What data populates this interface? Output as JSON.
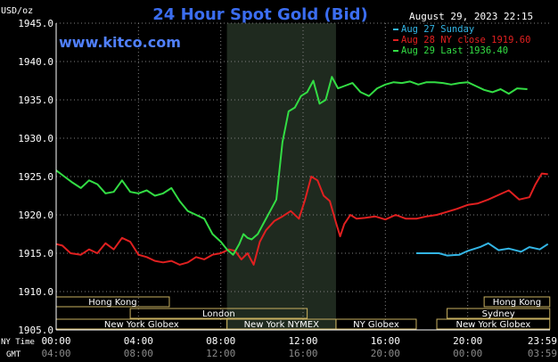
{
  "chart_data": {
    "type": "line",
    "title": "24 Hour Spot Gold (Bid)",
    "ylabel": "USD/oz",
    "website": "www.kitco.com",
    "timestamp": "August 29, 2023 22:15",
    "ylim": [
      1905,
      1945
    ],
    "yticks": [
      "1945.0",
      "1940.0",
      "1935.0",
      "1930.0",
      "1925.0",
      "1920.0",
      "1915.0",
      "1910.0",
      "1905.0"
    ],
    "xlim": [
      0,
      24
    ],
    "nytime_label": "NY Time",
    "gmt_label": "GMT",
    "nytime_ticks": [
      "00:00",
      "04:00",
      "08:00",
      "12:00",
      "16:00",
      "20:00",
      "23:59"
    ],
    "gmt_ticks": [
      "04:00",
      "08:00",
      "12:00",
      "16:00",
      "20:00",
      "00:00",
      "03:59"
    ],
    "shaded_region": [
      8.3,
      13.6
    ],
    "grid": true,
    "legend_position": "top-right",
    "sessions": [
      {
        "label": "Hong Kong",
        "start": 0,
        "end": 5.5,
        "row": 0
      },
      {
        "label": "Hong Kong",
        "start": 20.8,
        "end": 23.99,
        "row": 0
      },
      {
        "label": "London",
        "start": 3.6,
        "end": 12.2,
        "row": 1
      },
      {
        "label": "Sydney",
        "start": 19.0,
        "end": 23.99,
        "row": 1
      },
      {
        "label": "New York Globex",
        "start": 0,
        "end": 8.3,
        "row": 2
      },
      {
        "label": "New York NYMEX",
        "start": 8.3,
        "end": 13.6,
        "row": 2
      },
      {
        "label": "NY Globex",
        "start": 13.6,
        "end": 17.5,
        "row": 2
      },
      {
        "label": "New York Globex",
        "start": 18.5,
        "end": 23.99,
        "row": 2
      }
    ],
    "series": [
      {
        "name": "Aug 27 Sunday",
        "color": "#33b5e5",
        "x": [
          17.5,
          18.0,
          18.6,
          19.0,
          19.6,
          20.0,
          20.6,
          21.0,
          21.5,
          22.0,
          22.6,
          23.0,
          23.5,
          23.9
        ],
        "y": [
          1915.0,
          1915.0,
          1915.0,
          1914.7,
          1914.8,
          1915.3,
          1915.8,
          1916.3,
          1915.4,
          1915.6,
          1915.2,
          1915.8,
          1915.5,
          1916.2
        ]
      },
      {
        "name": "Aug 28 NY close 1919.60",
        "color": "#e02020",
        "x": [
          0.0,
          0.3,
          0.7,
          1.2,
          1.6,
          2.0,
          2.4,
          2.8,
          3.2,
          3.6,
          4.0,
          4.4,
          4.8,
          5.2,
          5.6,
          6.0,
          6.4,
          6.8,
          7.2,
          7.6,
          8.0,
          8.4,
          8.7,
          9.0,
          9.3,
          9.6,
          9.9,
          10.2,
          10.6,
          11.0,
          11.4,
          11.8,
          12.1,
          12.4,
          12.7,
          13.0,
          13.3,
          13.6,
          13.8,
          14.0,
          14.3,
          14.6,
          15.0,
          15.5,
          16.0,
          16.5,
          17.0,
          17.5,
          18.0,
          18.5,
          19.0,
          19.5,
          20.0,
          20.5,
          21.0,
          21.5,
          22.0,
          22.5,
          23.0,
          23.3,
          23.6,
          23.9
        ],
        "y": [
          1916.2,
          1916.0,
          1915.0,
          1914.8,
          1915.5,
          1915.0,
          1916.3,
          1915.5,
          1917.0,
          1916.5,
          1914.8,
          1914.5,
          1914.0,
          1913.8,
          1914.0,
          1913.5,
          1913.8,
          1914.5,
          1914.2,
          1914.8,
          1915.0,
          1915.5,
          1915.3,
          1914.2,
          1915.0,
          1913.5,
          1916.5,
          1918.0,
          1919.2,
          1919.8,
          1920.5,
          1919.5,
          1922.0,
          1925.0,
          1924.5,
          1922.5,
          1921.8,
          1919.0,
          1917.2,
          1918.8,
          1920.0,
          1919.5,
          1919.6,
          1919.8,
          1919.4,
          1920.0,
          1919.5,
          1919.5,
          1919.8,
          1920.0,
          1920.4,
          1920.8,
          1921.3,
          1921.5,
          1922.0,
          1922.6,
          1923.2,
          1922.0,
          1922.3,
          1924.0,
          1925.4,
          1925.3
        ]
      },
      {
        "name": "Aug 29 Last 1936.40",
        "color": "#33dd44",
        "x": [
          0.0,
          0.4,
          0.8,
          1.2,
          1.6,
          2.0,
          2.4,
          2.8,
          3.2,
          3.6,
          4.0,
          4.4,
          4.8,
          5.2,
          5.6,
          6.0,
          6.4,
          6.8,
          7.2,
          7.6,
          8.0,
          8.3,
          8.6,
          8.9,
          9.1,
          9.3,
          9.5,
          9.8,
          10.1,
          10.4,
          10.7,
          11.0,
          11.3,
          11.6,
          11.9,
          12.2,
          12.5,
          12.8,
          13.1,
          13.4,
          13.7,
          14.0,
          14.4,
          14.8,
          15.2,
          15.6,
          16.0,
          16.4,
          16.8,
          17.2,
          17.6,
          18.0,
          18.4,
          18.8,
          19.2,
          19.6,
          20.0,
          20.4,
          20.8,
          21.2,
          21.6,
          22.0,
          22.4,
          22.9
        ],
        "y": [
          1925.8,
          1925.0,
          1924.2,
          1923.5,
          1924.5,
          1924.0,
          1922.8,
          1923.0,
          1924.5,
          1923.0,
          1922.8,
          1923.2,
          1922.5,
          1922.8,
          1923.5,
          1921.8,
          1920.5,
          1920.0,
          1919.5,
          1917.5,
          1916.5,
          1915.5,
          1914.8,
          1916.2,
          1917.5,
          1917.0,
          1916.8,
          1917.5,
          1919.0,
          1920.5,
          1922.0,
          1929.5,
          1933.5,
          1934.0,
          1935.5,
          1936.0,
          1937.5,
          1934.5,
          1935.0,
          1938.0,
          1936.5,
          1936.8,
          1937.2,
          1936.0,
          1935.5,
          1936.5,
          1937.0,
          1937.3,
          1937.2,
          1937.4,
          1937.0,
          1937.3,
          1937.3,
          1937.2,
          1937.0,
          1937.2,
          1937.3,
          1936.8,
          1936.3,
          1936.0,
          1936.4,
          1935.8,
          1936.5,
          1936.4
        ]
      }
    ]
  }
}
